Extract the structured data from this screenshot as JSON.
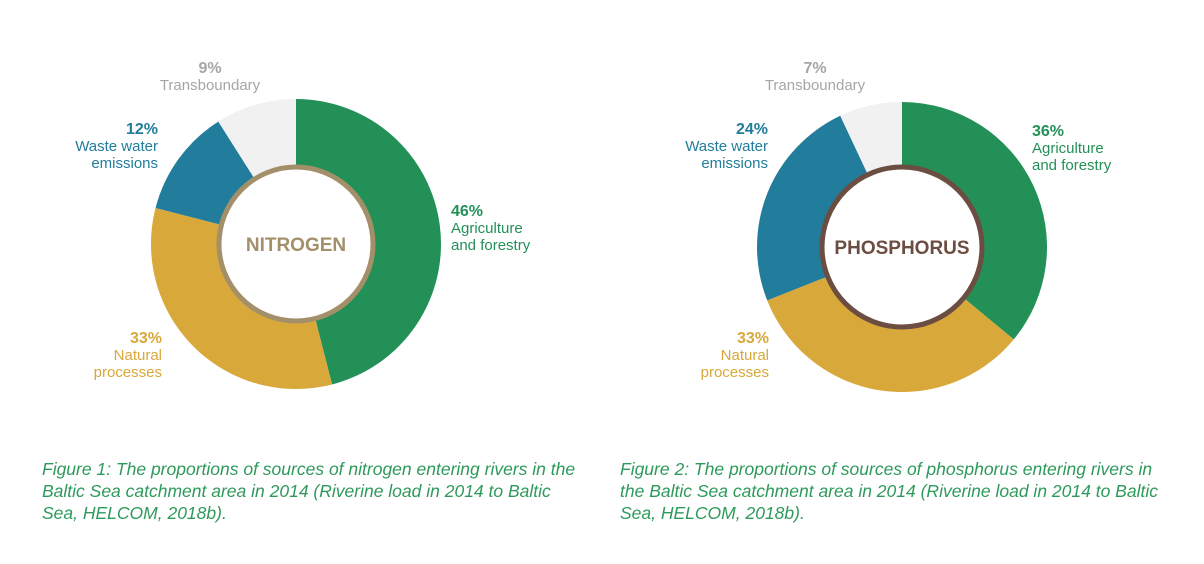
{
  "colors": {
    "agriculture": "#239157",
    "natural": "#d9a83b",
    "wastewater": "#217d9b",
    "transboundary": "#f1f1f1",
    "transboundary_text": "#a6a6a6",
    "caption": "#2d9a5b"
  },
  "chart_data": [
    {
      "type": "pie",
      "center_label": "NITROGEN",
      "center_color": "#a3906a",
      "slices": [
        {
          "pct": "46%",
          "label": "Agriculture and forestry",
          "value": 46
        },
        {
          "pct": "33%",
          "label": "Natural processes",
          "value": 33
        },
        {
          "pct": "12%",
          "label": "Waste water emissions",
          "value": 12
        },
        {
          "pct": "9%",
          "label": "Transboundary",
          "value": 9
        }
      ],
      "caption": "Figure 1:  The proportions of sources of nitrogen entering rivers in the Baltic Sea catchment area in 2014 (Riverine load in 2014 to Baltic Sea, HELCOM, 2018b)."
    },
    {
      "type": "pie",
      "center_label": "PHOSPHORUS",
      "center_color": "#6b4d41",
      "slices": [
        {
          "pct": "36%",
          "label": "Agriculture and forestry",
          "value": 36
        },
        {
          "pct": "33%",
          "label": "Natural processes",
          "value": 33
        },
        {
          "pct": "24%",
          "label": "Waste water emissions",
          "value": 24
        },
        {
          "pct": "7%",
          "label": "Transboundary",
          "value": 7
        }
      ],
      "caption": "Figure 2:  The proportions of sources of phosphorus entering rivers in the Baltic Sea catchment area in 2014 (Riverine load in 2014 to Baltic Sea, HELCOM, 2018b)."
    }
  ]
}
